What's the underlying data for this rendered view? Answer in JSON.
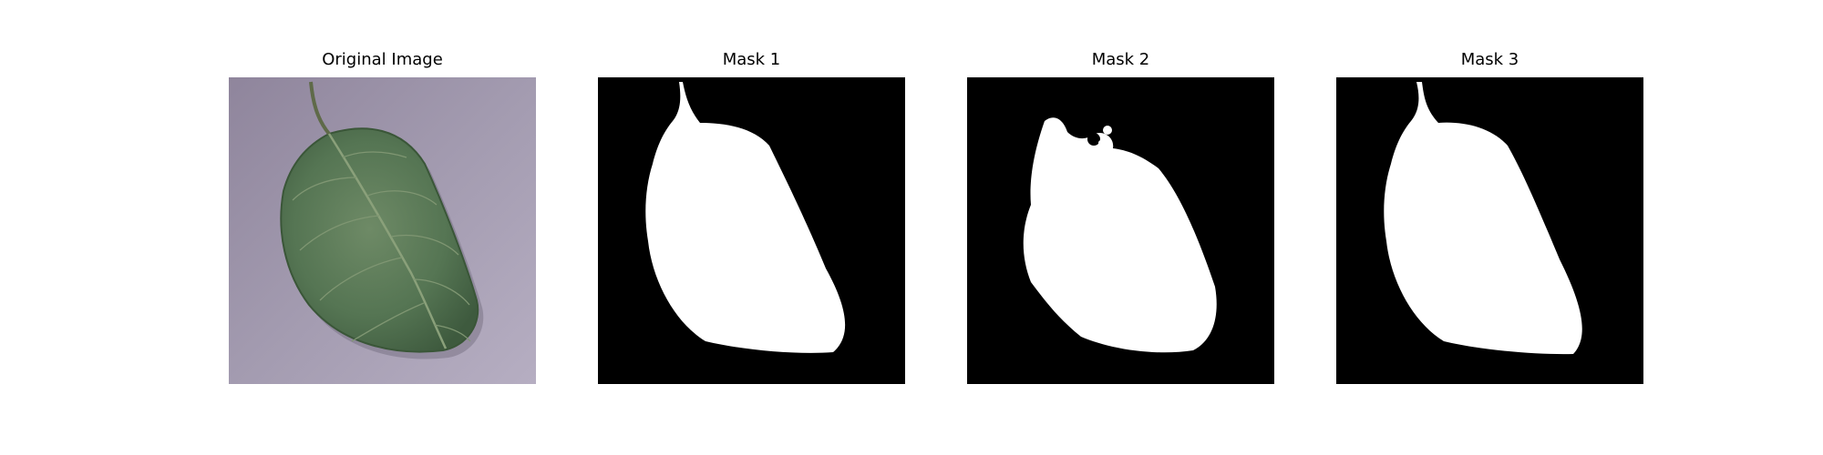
{
  "figure": {
    "panels": [
      {
        "title": "Original Image",
        "kind": "photo"
      },
      {
        "title": "Mask 1",
        "kind": "mask"
      },
      {
        "title": "Mask 2",
        "kind": "mask"
      },
      {
        "title": "Mask 3",
        "kind": "mask"
      }
    ]
  },
  "colors": {
    "background_photo": "#9c93a8",
    "leaf_dark": "#3f5d3f",
    "leaf_light": "#6f8b66",
    "mask_background": "#000000",
    "mask_foreground": "#ffffff"
  }
}
